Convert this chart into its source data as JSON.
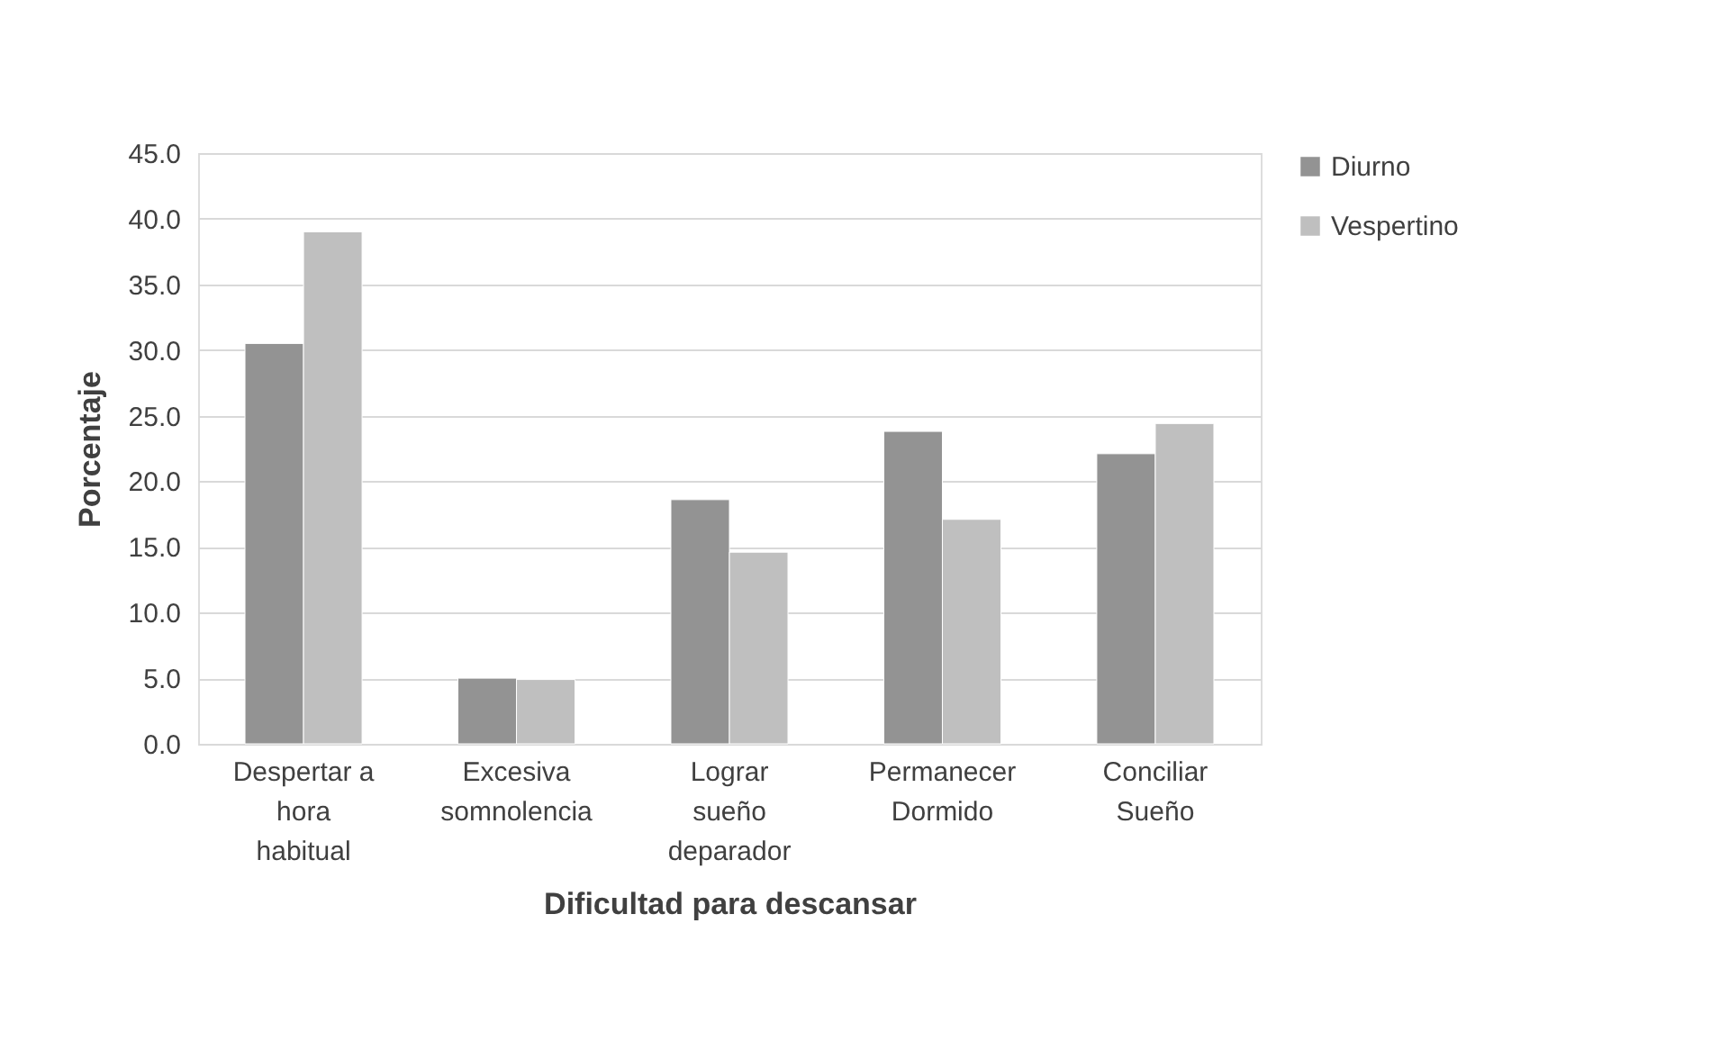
{
  "chart_data": {
    "type": "bar",
    "xlabel": "Dificultad para descansar",
    "ylabel": "Porcentaje",
    "categories": [
      "Despertar a\nhora\nhabitual",
      "Excesiva\nsomnolencia",
      "Lograr\nsueño\ndeparador",
      "Permanecer\nDormido",
      "Conciliar\nSueño"
    ],
    "series": [
      {
        "name": "Diurno",
        "color": "#939393",
        "values": [
          30.5,
          5.0,
          18.6,
          23.8,
          22.1
        ]
      },
      {
        "name": "Vespertino",
        "color": "#bfbfbf",
        "values": [
          39.0,
          4.9,
          14.6,
          17.1,
          24.4
        ]
      }
    ],
    "ylim": [
      0,
      45
    ],
    "yticks": [
      {
        "value": 0,
        "label": "0.0"
      },
      {
        "value": 5,
        "label": "5.0"
      },
      {
        "value": 10,
        "label": "10.0"
      },
      {
        "value": 15,
        "label": "15.0"
      },
      {
        "value": 20,
        "label": "20.0"
      },
      {
        "value": 25,
        "label": "25.0"
      },
      {
        "value": 30,
        "label": "30.0"
      },
      {
        "value": 35,
        "label": "35.0"
      },
      {
        "value": 40,
        "label": "40.0"
      },
      {
        "value": 45,
        "label": "45.0"
      }
    ],
    "grid": "y",
    "legend": "right"
  }
}
